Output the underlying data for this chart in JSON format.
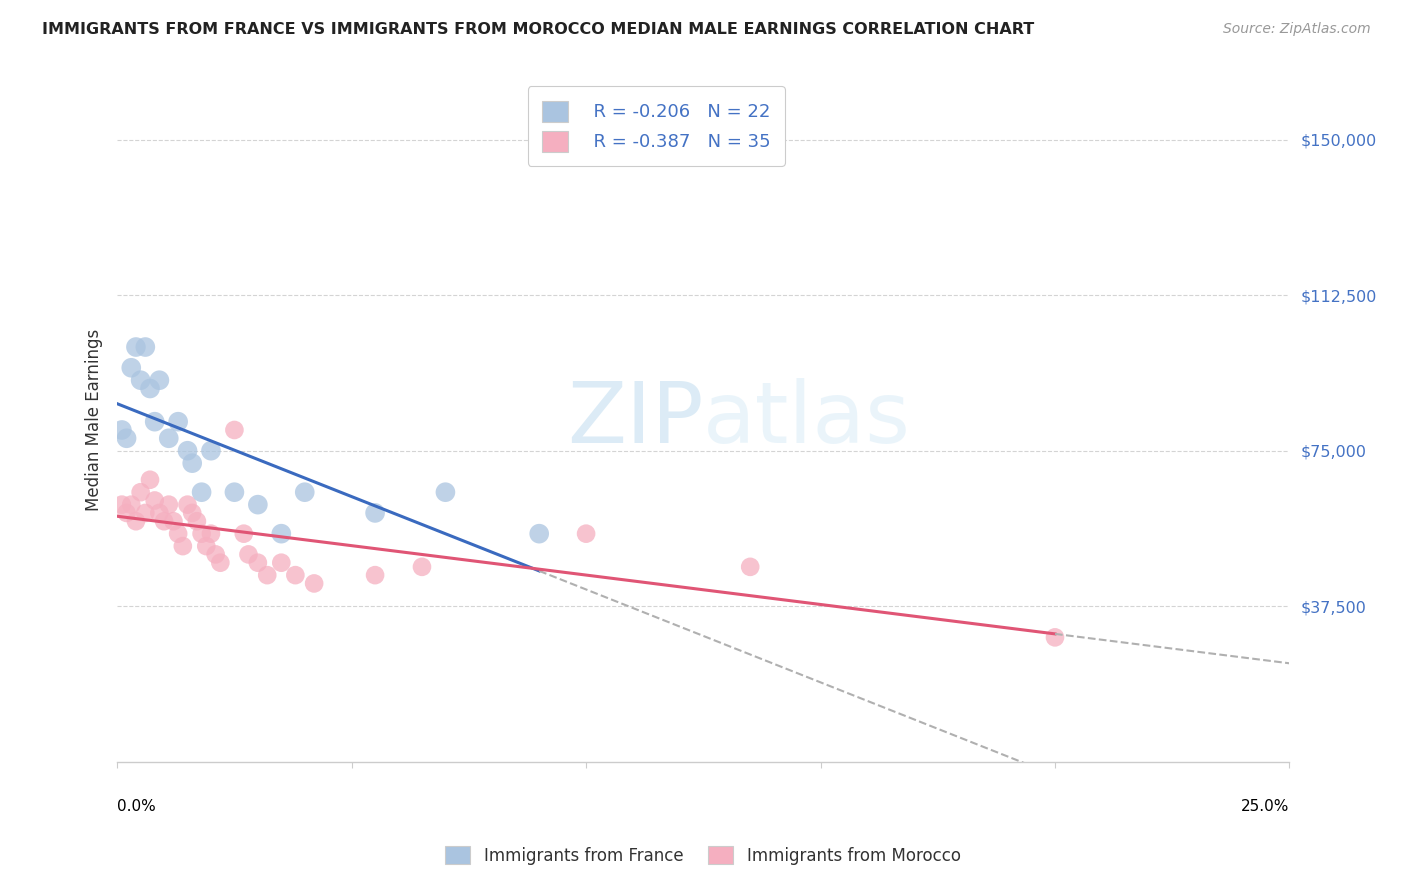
{
  "title": "IMMIGRANTS FROM FRANCE VS IMMIGRANTS FROM MOROCCO MEDIAN MALE EARNINGS CORRELATION CHART",
  "source": "Source: ZipAtlas.com",
  "ylabel": "Median Male Earnings",
  "ymin": 0,
  "ymax": 165000,
  "xmin": 0.0,
  "xmax": 0.25,
  "background_color": "#ffffff",
  "grid_color": "#d0d0d0",
  "france_color": "#aac4e0",
  "france_line_color": "#3a6abf",
  "morocco_color": "#f5afc0",
  "morocco_line_color": "#e05575",
  "legend_france_R": "R = -0.206",
  "legend_france_N": "N = 22",
  "legend_morocco_R": "R = -0.387",
  "legend_morocco_N": "N = 35",
  "france_x": [
    0.001,
    0.002,
    0.003,
    0.004,
    0.005,
    0.006,
    0.007,
    0.008,
    0.009,
    0.011,
    0.013,
    0.015,
    0.016,
    0.018,
    0.02,
    0.025,
    0.03,
    0.035,
    0.04,
    0.055,
    0.07,
    0.09
  ],
  "france_y": [
    80000,
    78000,
    95000,
    100000,
    92000,
    100000,
    90000,
    82000,
    92000,
    78000,
    82000,
    75000,
    72000,
    65000,
    75000,
    65000,
    62000,
    55000,
    65000,
    60000,
    65000,
    55000
  ],
  "morocco_x": [
    0.001,
    0.002,
    0.003,
    0.004,
    0.005,
    0.006,
    0.007,
    0.008,
    0.009,
    0.01,
    0.011,
    0.012,
    0.013,
    0.014,
    0.015,
    0.016,
    0.017,
    0.018,
    0.019,
    0.02,
    0.021,
    0.022,
    0.025,
    0.027,
    0.028,
    0.03,
    0.032,
    0.035,
    0.038,
    0.042,
    0.055,
    0.065,
    0.1,
    0.135,
    0.2
  ],
  "morocco_y": [
    62000,
    60000,
    62000,
    58000,
    65000,
    60000,
    68000,
    63000,
    60000,
    58000,
    62000,
    58000,
    55000,
    52000,
    62000,
    60000,
    58000,
    55000,
    52000,
    55000,
    50000,
    48000,
    80000,
    55000,
    50000,
    48000,
    45000,
    48000,
    45000,
    43000,
    45000,
    47000,
    55000,
    47000,
    30000
  ],
  "france_bubble_size": 200,
  "morocco_bubble_size": 180,
  "trendline_extend_color": "#b0b0b0",
  "france_trendline_end_x": 0.09,
  "morocco_trendline_end_x": 0.2
}
